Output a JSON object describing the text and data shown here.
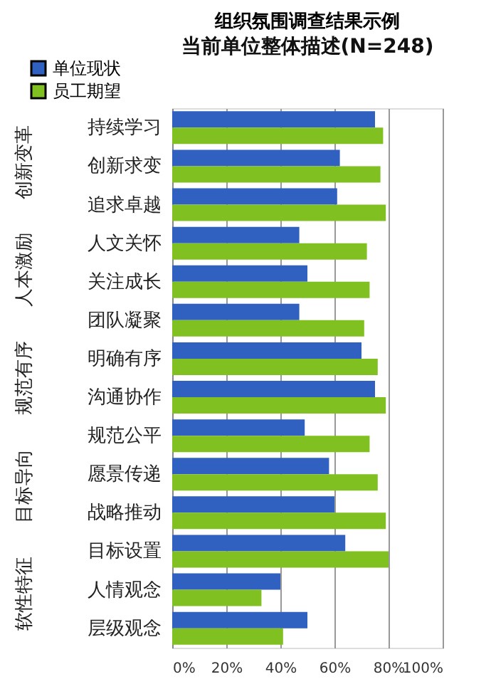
{
  "chart_data": {
    "type": "bar",
    "orientation": "horizontal",
    "title": "组织氛围调查结果示例",
    "subtitle": "当前单位整体描述(N=248)",
    "categories": [
      "持续学习",
      "创新求变",
      "追求卓越",
      "人文关怀",
      "关注成长",
      "团队凝聚",
      "明确有序",
      "沟通协作",
      "规范公平",
      "愿景传递",
      "战略推动",
      "目标设置",
      "人情观念",
      "层级观念"
    ],
    "series": [
      {
        "name": "单位现状",
        "color": "#3060c0",
        "values": [
          75,
          62,
          61,
          47,
          50,
          47,
          70,
          75,
          49,
          58,
          60,
          64,
          40,
          50
        ]
      },
      {
        "name": "员工期望",
        "color": "#80c020",
        "values": [
          78,
          77,
          79,
          72,
          73,
          71,
          76,
          79,
          73,
          76,
          79,
          80,
          33,
          41
        ]
      }
    ],
    "xlim": [
      0,
      100
    ],
    "xticks": [
      {
        "value": 0,
        "label": "0%"
      },
      {
        "value": 20,
        "label": "20%"
      },
      {
        "value": 40,
        "label": "40%"
      },
      {
        "value": 60,
        "label": "60%"
      },
      {
        "value": 80,
        "label": "80%"
      },
      {
        "value": 100,
        "label": "100%"
      }
    ],
    "grid": "x",
    "legend": "top left",
    "annotations": [
      "创新变革",
      "人本激励",
      "规范有序",
      "目标导向",
      "软性特征"
    ]
  }
}
